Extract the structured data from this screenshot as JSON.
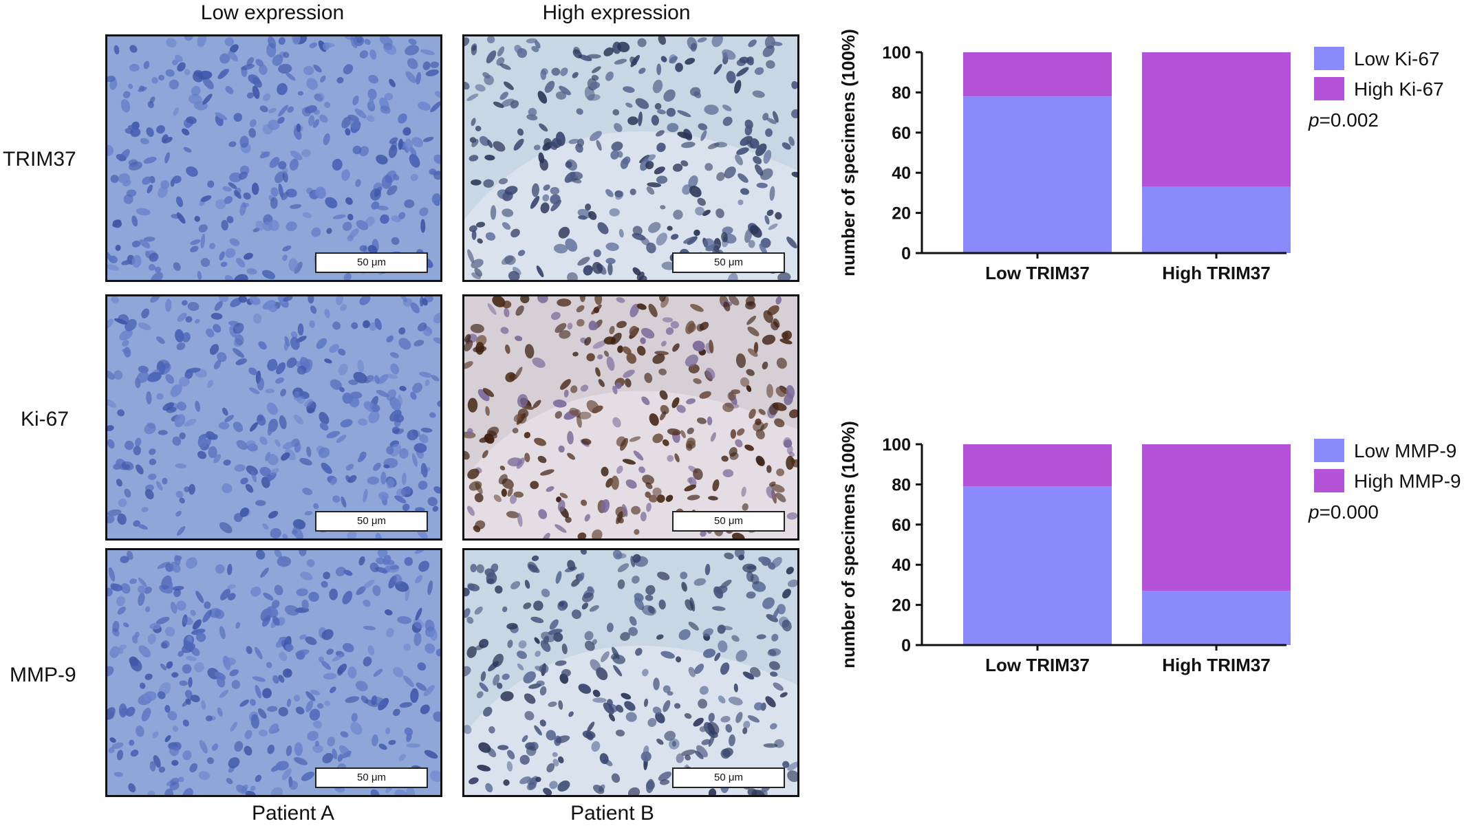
{
  "figure": {
    "column_headers": [
      "Low expression",
      "High expression"
    ],
    "row_labels": [
      "TRIM37",
      "Ki-67",
      "MMP-9"
    ],
    "patient_labels": [
      "Patient A",
      "Patient B"
    ],
    "scale_bar_label": "50 μm",
    "panels": [
      {
        "row": "TRIM37",
        "patient": "Patient A",
        "stain": "low",
        "palette": "blue"
      },
      {
        "row": "TRIM37",
        "patient": "Patient B",
        "stain": "high",
        "palette": "blue-dark"
      },
      {
        "row": "Ki-67",
        "patient": "Patient A",
        "stain": "low",
        "palette": "blue"
      },
      {
        "row": "Ki-67",
        "patient": "Patient B",
        "stain": "high",
        "palette": "brown"
      },
      {
        "row": "MMP-9",
        "patient": "Patient A",
        "stain": "low",
        "palette": "blue"
      },
      {
        "row": "MMP-9",
        "patient": "Patient B",
        "stain": "high",
        "palette": "blue-dark"
      }
    ],
    "colors": {
      "low_series": "#8a8afc",
      "high_series": "#b452d8",
      "axis": "#111111"
    }
  },
  "chart_data": [
    {
      "type": "bar",
      "stacked": true,
      "categories": [
        "Low TRIM37",
        "High TRIM37"
      ],
      "series": [
        {
          "name": "Low Ki-67",
          "values": [
            78,
            33
          ],
          "color": "#8a8afc"
        },
        {
          "name": "High Ki-67",
          "values": [
            22,
            67
          ],
          "color": "#b452d8"
        }
      ],
      "ylabel": "number of specimens (100%)",
      "xlabel": "",
      "ylim": [
        0,
        100
      ],
      "yticks": [
        0,
        20,
        40,
        60,
        80,
        100
      ],
      "annotation_prefix": "p",
      "annotation_value": "=0.002",
      "legend_position": "top-right"
    },
    {
      "type": "bar",
      "stacked": true,
      "categories": [
        "Low TRIM37",
        "High TRIM37"
      ],
      "series": [
        {
          "name": "Low MMP-9",
          "values": [
            79,
            27
          ],
          "color": "#8a8afc"
        },
        {
          "name": "High MMP-9",
          "values": [
            21,
            73
          ],
          "color": "#b452d8"
        }
      ],
      "ylabel": "number of specimens (100%)",
      "xlabel": "",
      "ylim": [
        0,
        100
      ],
      "yticks": [
        0,
        20,
        40,
        60,
        80,
        100
      ],
      "annotation_prefix": "p",
      "annotation_value": "=0.000",
      "legend_position": "top-right"
    }
  ]
}
